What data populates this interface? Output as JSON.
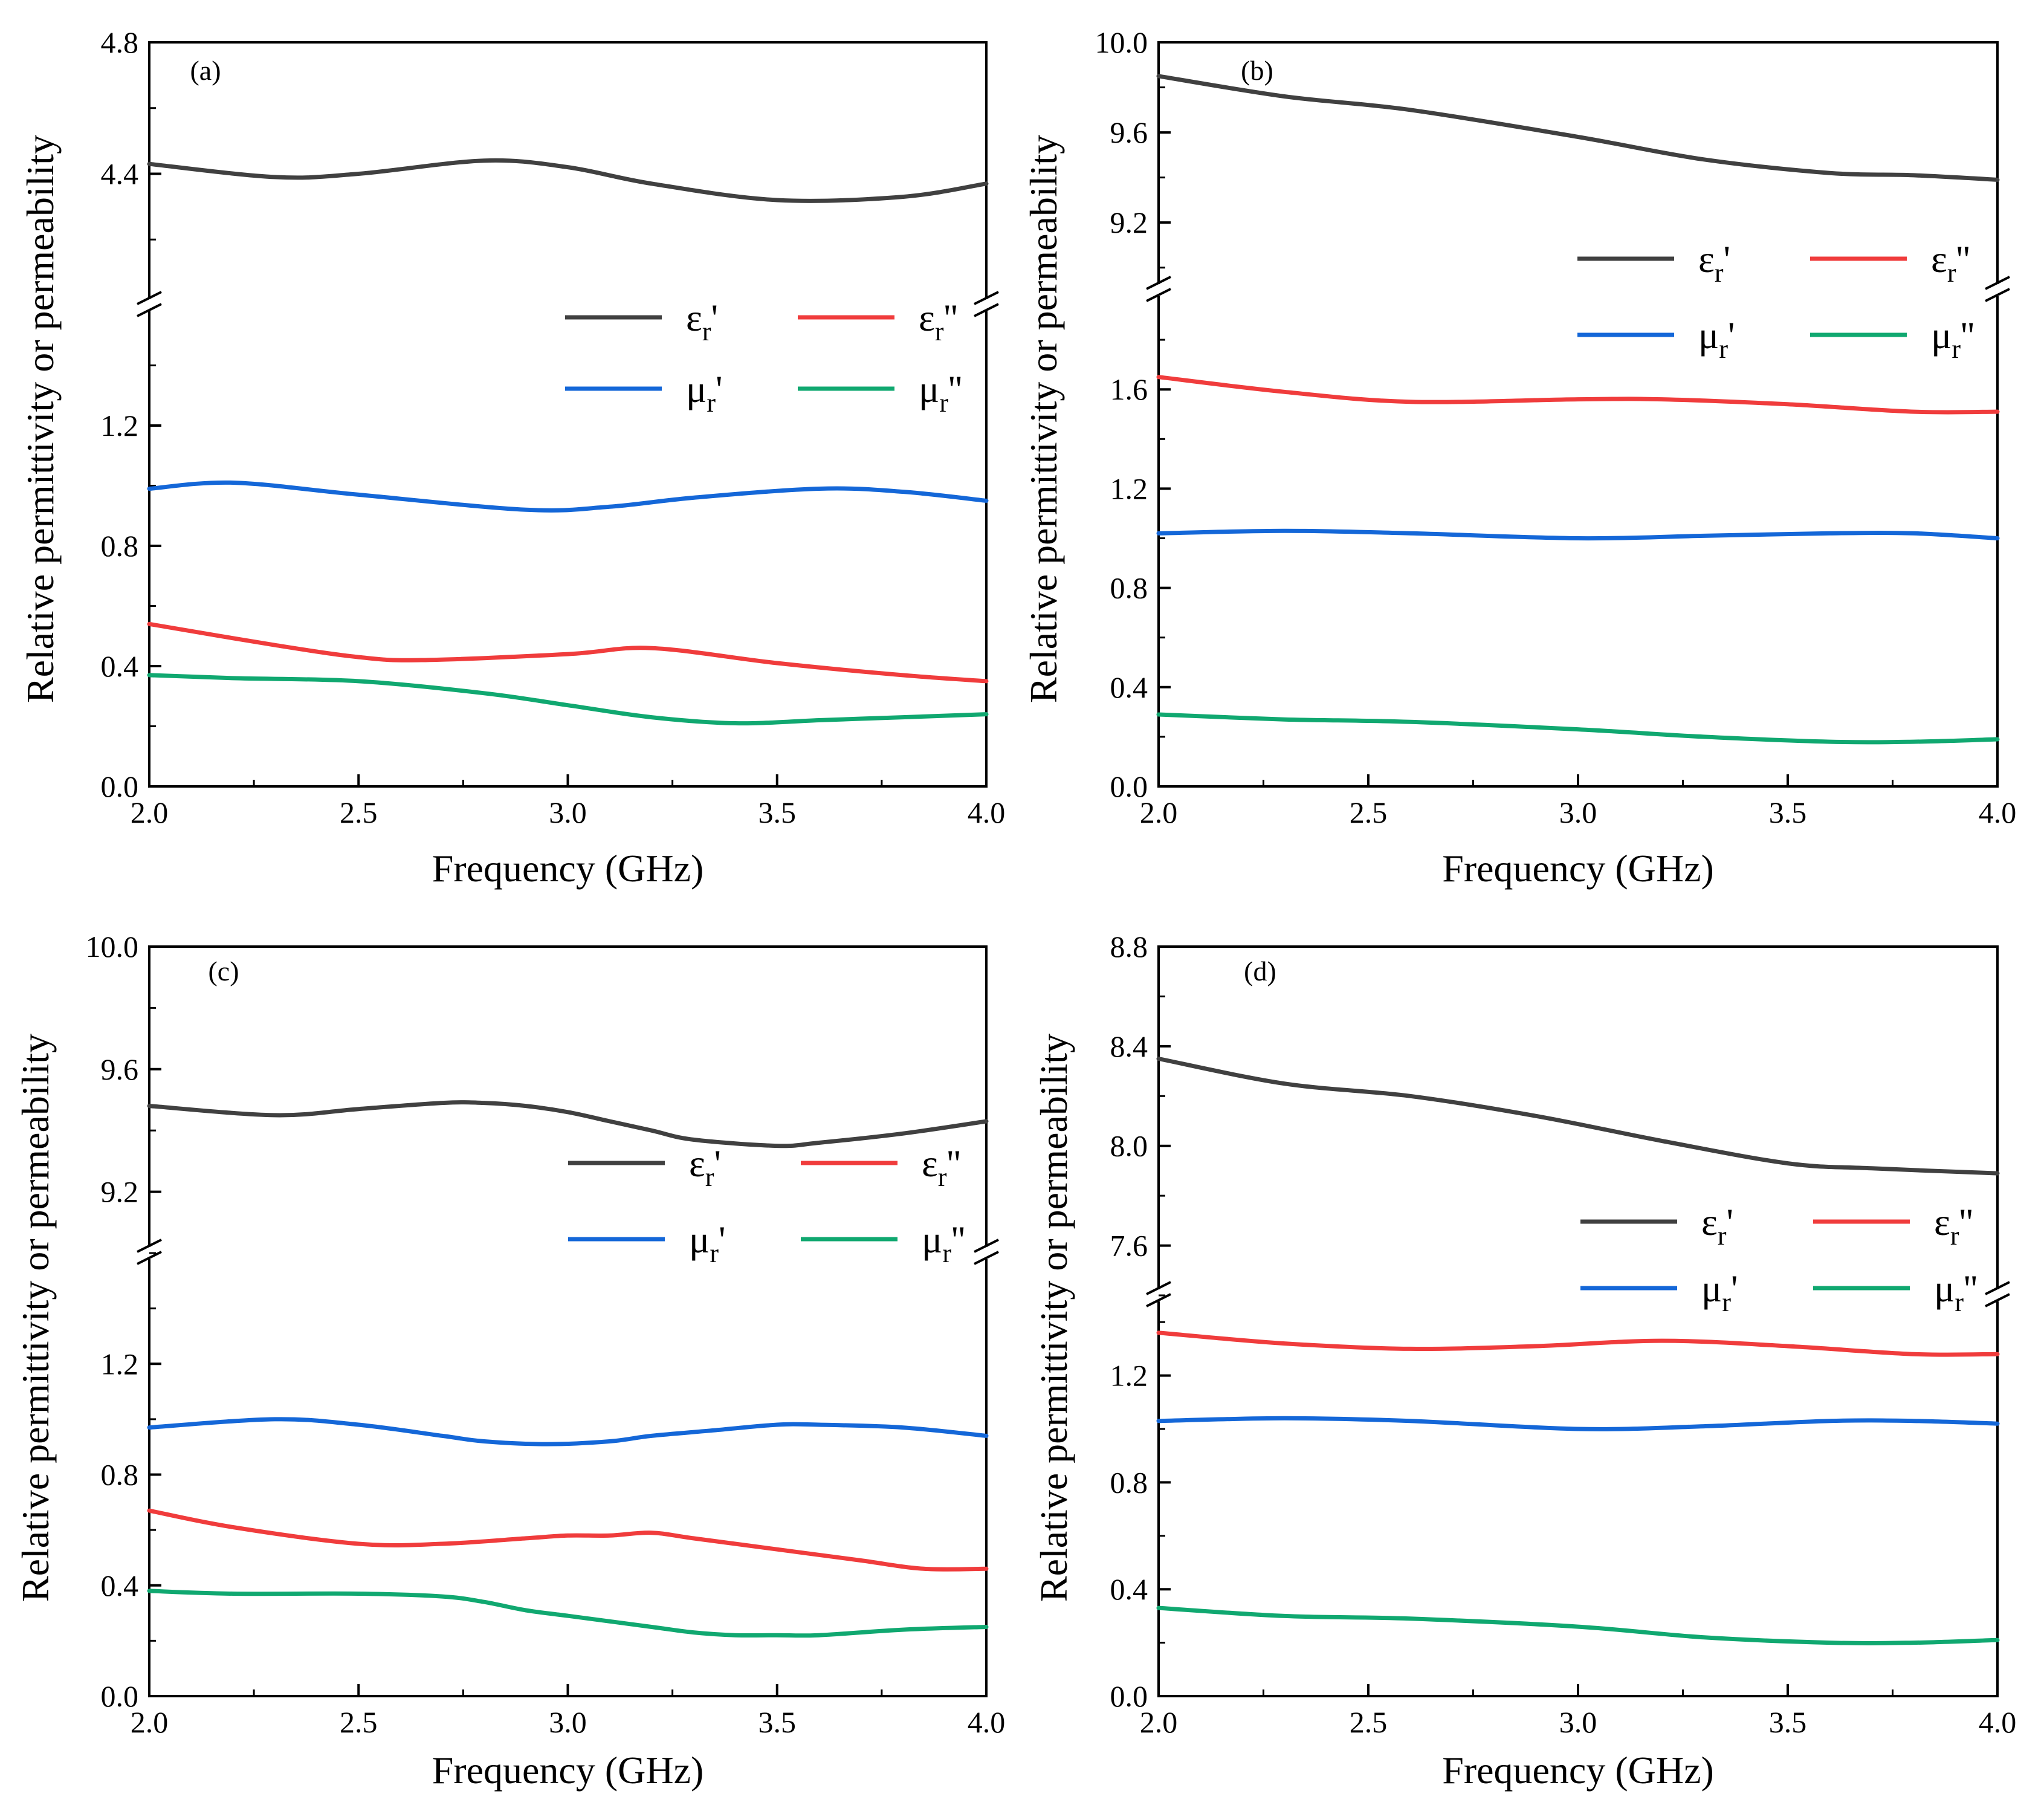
{
  "chart_data": [
    {
      "panel_label": "(a)",
      "type": "line",
      "xlabel": "Frequency (GHz)",
      "ylabel": "Relative permittivity or permeability",
      "xlim": [
        2.0,
        4.0
      ],
      "x_ticks": [
        "2.0",
        "2.5",
        "3.0",
        "3.5",
        "4.0"
      ],
      "upper_ylim": [
        4.0,
        4.8
      ],
      "upper_ticks": [
        "4.4",
        "4.8"
      ],
      "lower_ylim": [
        0.0,
        1.6
      ],
      "lower_ticks": [
        "0.0",
        "0.4",
        "0.8",
        "1.2"
      ],
      "series": [
        {
          "name": "εr'",
          "color": "#404040",
          "axis": "upper",
          "x": [
            2.0,
            2.3,
            2.5,
            2.8,
            3.0,
            3.2,
            3.5,
            3.8,
            4.0
          ],
          "y": [
            4.43,
            4.39,
            4.4,
            4.44,
            4.42,
            4.37,
            4.32,
            4.33,
            4.37
          ]
        },
        {
          "name": "εr''",
          "color": "#f03c3c",
          "axis": "lower",
          "x": [
            2.0,
            2.3,
            2.5,
            2.65,
            3.0,
            3.2,
            3.5,
            3.8,
            4.0
          ],
          "y": [
            0.54,
            0.47,
            0.43,
            0.42,
            0.44,
            0.46,
            0.41,
            0.37,
            0.35
          ]
        },
        {
          "name": "μr'",
          "color": "#1467d8",
          "axis": "lower",
          "x": [
            2.0,
            2.2,
            2.5,
            2.9,
            3.1,
            3.3,
            3.6,
            3.8,
            4.0
          ],
          "y": [
            0.99,
            1.01,
            0.97,
            0.92,
            0.93,
            0.96,
            0.99,
            0.98,
            0.95
          ]
        },
        {
          "name": "μr''",
          "color": "#10a870",
          "axis": "lower",
          "x": [
            2.0,
            2.2,
            2.5,
            2.8,
            3.0,
            3.2,
            3.4,
            3.6,
            3.8,
            4.0
          ],
          "y": [
            0.37,
            0.36,
            0.35,
            0.31,
            0.27,
            0.23,
            0.21,
            0.22,
            0.23,
            0.24
          ]
        }
      ]
    },
    {
      "panel_label": "(b)",
      "type": "line",
      "xlabel": "Frequency (GHz)",
      "ylabel": "Relative permittivity or permeability",
      "xlim": [
        2.0,
        4.0
      ],
      "x_ticks": [
        "2.0",
        "2.5",
        "3.0",
        "3.5",
        "4.0"
      ],
      "upper_ylim": [
        8.9,
        10.0
      ],
      "upper_ticks": [
        "9.2",
        "9.6",
        "10.0"
      ],
      "lower_ylim": [
        0.0,
        2.0
      ],
      "lower_ticks": [
        "0.0",
        "0.4",
        "0.8",
        "1.2",
        "1.6"
      ],
      "series": [
        {
          "name": "εr'",
          "color": "#404040",
          "axis": "upper",
          "x": [
            2.0,
            2.3,
            2.6,
            3.0,
            3.3,
            3.6,
            3.8,
            4.0
          ],
          "y": [
            9.85,
            9.76,
            9.7,
            9.58,
            9.48,
            9.42,
            9.41,
            9.39
          ]
        },
        {
          "name": "εr''",
          "color": "#f03c3c",
          "axis": "lower",
          "x": [
            2.0,
            2.3,
            2.6,
            3.0,
            3.2,
            3.5,
            3.8,
            4.0
          ],
          "y": [
            1.65,
            1.59,
            1.55,
            1.56,
            1.56,
            1.54,
            1.51,
            1.51
          ]
        },
        {
          "name": "μr'",
          "color": "#1467d8",
          "axis": "lower",
          "x": [
            2.0,
            2.3,
            2.6,
            3.0,
            3.3,
            3.6,
            3.8,
            4.0
          ],
          "y": [
            1.02,
            1.03,
            1.02,
            1.0,
            1.01,
            1.02,
            1.02,
            1.0
          ]
        },
        {
          "name": "μr''",
          "color": "#10a870",
          "axis": "lower",
          "x": [
            2.0,
            2.3,
            2.6,
            3.0,
            3.3,
            3.6,
            3.8,
            4.0
          ],
          "y": [
            0.29,
            0.27,
            0.26,
            0.23,
            0.2,
            0.18,
            0.18,
            0.19
          ]
        }
      ]
    },
    {
      "panel_label": "(c)",
      "type": "line",
      "xlabel": "Frequency (GHz)",
      "ylabel": "Relative permittivity or permeability",
      "xlim": [
        2.0,
        4.0
      ],
      "x_ticks": [
        "2.0",
        "2.5",
        "3.0",
        "3.5",
        "4.0"
      ],
      "upper_ylim": [
        9.0,
        10.0
      ],
      "upper_ticks": [
        "9.2",
        "9.6",
        "10.0"
      ],
      "lower_ylim": [
        0.0,
        1.6
      ],
      "lower_ticks": [
        "0.0",
        "0.4",
        "0.8",
        "1.2"
      ],
      "series": [
        {
          "name": "εr'",
          "color": "#404040",
          "axis": "upper",
          "x": [
            2.0,
            2.3,
            2.5,
            2.7,
            2.8,
            2.9,
            3.0,
            3.1,
            3.2,
            3.3,
            3.5,
            3.6,
            3.8,
            4.0
          ],
          "y": [
            9.48,
            9.45,
            9.47,
            9.49,
            9.49,
            9.48,
            9.46,
            9.43,
            9.4,
            9.37,
            9.35,
            9.36,
            9.39,
            9.43
          ]
        },
        {
          "name": "εr''",
          "color": "#f03c3c",
          "axis": "lower",
          "x": [
            2.0,
            2.2,
            2.5,
            2.7,
            2.9,
            3.0,
            3.1,
            3.2,
            3.3,
            3.5,
            3.7,
            3.85,
            4.0
          ],
          "y": [
            0.67,
            0.61,
            0.55,
            0.55,
            0.57,
            0.58,
            0.58,
            0.59,
            0.57,
            0.53,
            0.49,
            0.46,
            0.46
          ]
        },
        {
          "name": "μr'",
          "color": "#1467d8",
          "axis": "lower",
          "x": [
            2.0,
            2.3,
            2.5,
            2.7,
            2.8,
            2.95,
            3.1,
            3.2,
            3.35,
            3.5,
            3.6,
            3.8,
            4.0
          ],
          "y": [
            0.97,
            1.0,
            0.98,
            0.94,
            0.92,
            0.91,
            0.92,
            0.94,
            0.96,
            0.98,
            0.98,
            0.97,
            0.94
          ]
        },
        {
          "name": "μr''",
          "color": "#10a870",
          "axis": "lower",
          "x": [
            2.0,
            2.2,
            2.5,
            2.7,
            2.8,
            2.9,
            3.0,
            3.1,
            3.2,
            3.3,
            3.4,
            3.5,
            3.6,
            3.8,
            4.0
          ],
          "y": [
            0.38,
            0.37,
            0.37,
            0.36,
            0.34,
            0.31,
            0.29,
            0.27,
            0.25,
            0.23,
            0.22,
            0.22,
            0.22,
            0.24,
            0.25
          ]
        }
      ]
    },
    {
      "panel_label": "(d)",
      "type": "line",
      "xlabel": "Frequency (GHz)",
      "ylabel": "Relative permittivity or permeability",
      "xlim": [
        2.0,
        4.0
      ],
      "x_ticks": [
        "2.0",
        "2.5",
        "3.0",
        "3.5",
        "4.0"
      ],
      "upper_ylim": [
        7.4,
        8.8
      ],
      "upper_ticks": [
        "7.6",
        "8.0",
        "8.4",
        "8.8"
      ],
      "lower_ylim": [
        0.0,
        1.5
      ],
      "lower_ticks": [
        "0.0",
        "0.4",
        "0.8",
        "1.2"
      ],
      "series": [
        {
          "name": "εr'",
          "color": "#404040",
          "axis": "upper",
          "x": [
            2.0,
            2.3,
            2.6,
            2.9,
            3.2,
            3.5,
            3.7,
            4.0
          ],
          "y": [
            8.35,
            8.25,
            8.2,
            8.12,
            8.02,
            7.93,
            7.91,
            7.89
          ]
        },
        {
          "name": "εr''",
          "color": "#f03c3c",
          "axis": "lower",
          "x": [
            2.0,
            2.3,
            2.6,
            2.9,
            3.2,
            3.5,
            3.8,
            4.0
          ],
          "y": [
            1.36,
            1.32,
            1.3,
            1.31,
            1.33,
            1.31,
            1.28,
            1.28
          ]
        },
        {
          "name": "μr'",
          "color": "#1467d8",
          "axis": "lower",
          "x": [
            2.0,
            2.3,
            2.6,
            3.0,
            3.3,
            3.6,
            3.8,
            4.0
          ],
          "y": [
            1.03,
            1.04,
            1.03,
            1.0,
            1.01,
            1.03,
            1.03,
            1.02
          ]
        },
        {
          "name": "μr''",
          "color": "#10a870",
          "axis": "lower",
          "x": [
            2.0,
            2.3,
            2.6,
            3.0,
            3.3,
            3.6,
            3.8,
            4.0
          ],
          "y": [
            0.33,
            0.3,
            0.29,
            0.26,
            0.22,
            0.2,
            0.2,
            0.21
          ]
        }
      ]
    }
  ]
}
